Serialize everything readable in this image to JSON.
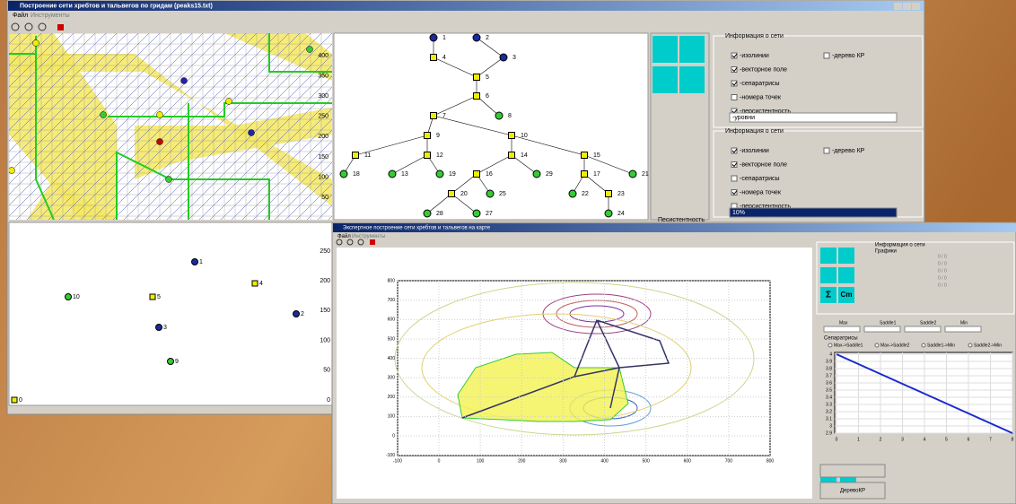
{
  "window1": {
    "title": "Построение сети хребтов и тальвегов по гридам (peaks15.txt)",
    "menu": [
      "Файл",
      "Инструменты"
    ],
    "grid_yticks": [
      400,
      350,
      300,
      250,
      200,
      150,
      100,
      50
    ],
    "scatter_yticks": [
      250,
      200,
      150,
      100,
      50,
      0
    ],
    "scatter_labels": [
      "1",
      "4",
      "10",
      "5",
      "2",
      "3",
      "9",
      "0"
    ],
    "tree_nodes": [
      "1",
      "2",
      "4",
      "3",
      "5",
      "6",
      "7",
      "8",
      "9",
      "10",
      "11",
      "12",
      "14",
      "15",
      "18",
      "13",
      "19",
      "16",
      "29",
      "17",
      "21",
      "20",
      "25",
      "22",
      "23",
      "28",
      "27",
      "24"
    ],
    "panel1": {
      "heading": "Информация о сети",
      "options": [
        {
          "label": "-изолинии",
          "checked": true
        },
        {
          "label": "-дерево КР",
          "checked": false
        },
        {
          "label": "-векторное поле",
          "checked": true
        },
        {
          "label": "-сепаратрисы",
          "checked": true
        },
        {
          "label": "-номера точек",
          "checked": false
        },
        {
          "label": "-персистентность",
          "checked": true
        }
      ],
      "select": "-уровни"
    },
    "panel2": {
      "heading": "Информация о сети",
      "options": [
        {
          "label": "-изолинии",
          "checked": true
        },
        {
          "label": "-дерево КР",
          "checked": false
        },
        {
          "label": "-векторное поле",
          "checked": true
        },
        {
          "label": "-сепаратрисы",
          "checked": false
        },
        {
          "label": "-номера точек",
          "checked": true
        },
        {
          "label": "-персистентность",
          "checked": false
        }
      ],
      "select": "10%"
    },
    "persistence_label": "Песистентность"
  },
  "window2": {
    "title": "Экспертное построение сети хребтов и тальвегов на карте",
    "menu": [
      "Файл",
      "Инструменты"
    ],
    "plot": {
      "xticks": [
        -100,
        0,
        100,
        200,
        300,
        400,
        500,
        600,
        700,
        800
      ],
      "yticks": [
        800,
        700,
        600,
        500,
        400,
        300,
        200,
        100,
        0,
        -100
      ]
    },
    "info_heading": "Информация о сети",
    "graphs_heading": "Графики",
    "counts": [
      "0 / 0",
      "0 / 0",
      "0 / 0",
      "0 / 0",
      "0 / 0"
    ],
    "columns": [
      "Max",
      "Saddle1",
      "Saddle2",
      "Min"
    ],
    "separatrices_heading": "Сепаратрисы",
    "separatrices": [
      "Max->Saddle1",
      "Max->Saddle2",
      "Saddle1->Min",
      "Saddle2->Min"
    ],
    "plot2": {
      "xticks": [
        0,
        1,
        2,
        3,
        4,
        5,
        6,
        7,
        8
      ],
      "yticks": [
        4,
        3.9,
        3.8,
        3.7,
        3.6,
        3.5,
        3.4,
        3.3,
        3.2,
        3.1,
        3,
        2.9
      ],
      "line_x": [
        0,
        8
      ],
      "line_y": [
        4,
        2.9
      ]
    },
    "buttons": [
      "Σ",
      "Cm",
      "ДеревоКР"
    ]
  }
}
